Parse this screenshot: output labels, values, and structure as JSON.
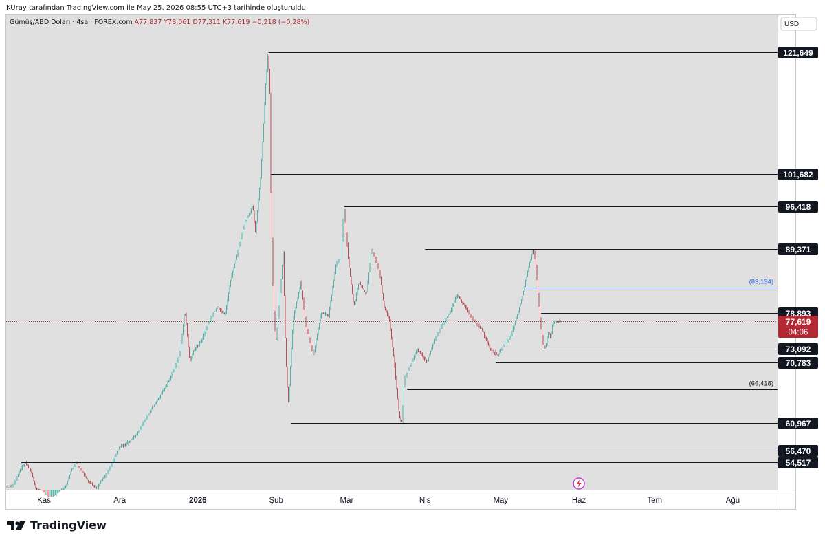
{
  "header": {
    "attribution": "KUray tarafından TradingView.com ile May 25, 2026 08:55 UTC+3 tarihinde oluşturuldu"
  },
  "legend": {
    "symbol": "Gümüş/ABD Doları · 4sa · FOREX.com",
    "ohlc": "A77,837 Y78,061 D77,311 K77,619 −0,218 (−0,28%)"
  },
  "currency_button": "USD",
  "brand": "TradingView",
  "colors": {
    "background": "#e0e0e0",
    "up": "#26a69a",
    "down": "#b22833",
    "level": "#131722",
    "blue_level": "#2962ff",
    "price_tag": "#b22833"
  },
  "chart_data": {
    "type": "candlestick",
    "x_axis_labels": [
      "Kas",
      "Ara",
      "2026",
      "Şub",
      "Mar",
      "Nis",
      "May",
      "Haz",
      "Tem",
      "Ağu"
    ],
    "y_ticks": [
      "52,000",
      "56,000",
      "60,000",
      "64,000",
      "68,000",
      "72,000",
      "76,000",
      "80,000",
      "84,000",
      "88,000",
      "92,000",
      "96,000",
      "100,000",
      "104,000",
      "108,000",
      "112,000",
      "116,000",
      "120,000"
    ],
    "y_range": [
      50000,
      122000
    ],
    "path": [
      {
        "t": "2025-10-20",
        "v": 50.5
      },
      {
        "t": "2025-10-23",
        "v": 53.5
      },
      {
        "t": "2025-10-25",
        "v": 54.5
      },
      {
        "t": "2025-10-27",
        "v": 53.0
      },
      {
        "t": "2025-10-29",
        "v": 50.2
      },
      {
        "t": "2025-11-03",
        "v": 48.5
      },
      {
        "t": "2025-11-06",
        "v": 49.0
      },
      {
        "t": "2025-11-10",
        "v": 50.6
      },
      {
        "t": "2025-11-12",
        "v": 53.2
      },
      {
        "t": "2025-11-14",
        "v": 54.4
      },
      {
        "t": "2025-11-17",
        "v": 52.5
      },
      {
        "t": "2025-11-19",
        "v": 51.2
      },
      {
        "t": "2025-11-22",
        "v": 50.3
      },
      {
        "t": "2025-11-25",
        "v": 52.0
      },
      {
        "t": "2025-11-28",
        "v": 54.0
      },
      {
        "t": "2025-12-01",
        "v": 57.0
      },
      {
        "t": "2025-12-04",
        "v": 57.5
      },
      {
        "t": "2025-12-08",
        "v": 59.0
      },
      {
        "t": "2025-12-12",
        "v": 62.0
      },
      {
        "t": "2025-12-15",
        "v": 64.0
      },
      {
        "t": "2025-12-19",
        "v": 66.5
      },
      {
        "t": "2025-12-22",
        "v": 69.0
      },
      {
        "t": "2025-12-25",
        "v": 72.0
      },
      {
        "t": "2025-12-27",
        "v": 79.5
      },
      {
        "t": "2025-12-29",
        "v": 71.0
      },
      {
        "t": "2025-12-31",
        "v": 73.0
      },
      {
        "t": "2026-01-03",
        "v": 74.5
      },
      {
        "t": "2026-01-06",
        "v": 78.0
      },
      {
        "t": "2026-01-09",
        "v": 80.0
      },
      {
        "t": "2026-01-12",
        "v": 78.5
      },
      {
        "t": "2026-01-14",
        "v": 84.0
      },
      {
        "t": "2026-01-17",
        "v": 89.0
      },
      {
        "t": "2026-01-20",
        "v": 94.0
      },
      {
        "t": "2026-01-23",
        "v": 96.5
      },
      {
        "t": "2026-01-24",
        "v": 92.0
      },
      {
        "t": "2026-01-26",
        "v": 101.0
      },
      {
        "t": "2026-01-27",
        "v": 108.0
      },
      {
        "t": "2026-01-28",
        "v": 116.0
      },
      {
        "t": "2026-01-29",
        "v": 121.6
      },
      {
        "t": "2026-01-30",
        "v": 112.0
      },
      {
        "t": "2026-01-30",
        "v": 101.0
      },
      {
        "t": "2026-01-31",
        "v": 82.0
      },
      {
        "t": "2026-02-01",
        "v": 74.0
      },
      {
        "t": "2026-02-02",
        "v": 78.0
      },
      {
        "t": "2026-02-04",
        "v": 89.0
      },
      {
        "t": "2026-02-05",
        "v": 72.0
      },
      {
        "t": "2026-02-06",
        "v": 64.0
      },
      {
        "t": "2026-02-08",
        "v": 78.0
      },
      {
        "t": "2026-02-11",
        "v": 84.0
      },
      {
        "t": "2026-02-13",
        "v": 77.0
      },
      {
        "t": "2026-02-16",
        "v": 72.0
      },
      {
        "t": "2026-02-19",
        "v": 79.0
      },
      {
        "t": "2026-02-22",
        "v": 78.5
      },
      {
        "t": "2026-02-25",
        "v": 87.0
      },
      {
        "t": "2026-02-27",
        "v": 88.0
      },
      {
        "t": "2026-02-28",
        "v": 96.4
      },
      {
        "t": "2026-03-02",
        "v": 87.0
      },
      {
        "t": "2026-03-04",
        "v": 80.0
      },
      {
        "t": "2026-03-06",
        "v": 84.0
      },
      {
        "t": "2026-03-09",
        "v": 82.0
      },
      {
        "t": "2026-03-11",
        "v": 89.5
      },
      {
        "t": "2026-03-14",
        "v": 86.0
      },
      {
        "t": "2026-03-16",
        "v": 80.0
      },
      {
        "t": "2026-03-18",
        "v": 78.0
      },
      {
        "t": "2026-03-20",
        "v": 71.0
      },
      {
        "t": "2026-03-22",
        "v": 62.0
      },
      {
        "t": "2026-03-23",
        "v": 61.0
      },
      {
        "t": "2026-03-24",
        "v": 68.0
      },
      {
        "t": "2026-03-26",
        "v": 70.0
      },
      {
        "t": "2026-03-29",
        "v": 73.0
      },
      {
        "t": "2026-04-02",
        "v": 71.0
      },
      {
        "t": "2026-04-05",
        "v": 74.5
      },
      {
        "t": "2026-04-08",
        "v": 77.0
      },
      {
        "t": "2026-04-11",
        "v": 79.0
      },
      {
        "t": "2026-04-14",
        "v": 82.0
      },
      {
        "t": "2026-04-17",
        "v": 80.0
      },
      {
        "t": "2026-04-20",
        "v": 78.0
      },
      {
        "t": "2026-04-24",
        "v": 76.0
      },
      {
        "t": "2026-04-27",
        "v": 73.0
      },
      {
        "t": "2026-04-30",
        "v": 72.0
      },
      {
        "t": "2026-05-02",
        "v": 73.5
      },
      {
        "t": "2026-05-05",
        "v": 75.0
      },
      {
        "t": "2026-05-08",
        "v": 79.0
      },
      {
        "t": "2026-05-10",
        "v": 82.0
      },
      {
        "t": "2026-05-12",
        "v": 86.0
      },
      {
        "t": "2026-05-14",
        "v": 89.3
      },
      {
        "t": "2026-05-15",
        "v": 87.5
      },
      {
        "t": "2026-05-16",
        "v": 82.0
      },
      {
        "t": "2026-05-17",
        "v": 77.0
      },
      {
        "t": "2026-05-18",
        "v": 74.0
      },
      {
        "t": "2026-05-19",
        "v": 73.2
      },
      {
        "t": "2026-05-20",
        "v": 76.0
      },
      {
        "t": "2026-05-21",
        "v": 75.0
      },
      {
        "t": "2026-05-22",
        "v": 77.5
      },
      {
        "t": "2026-05-25",
        "v": 77.6
      }
    ],
    "levels": [
      {
        "price": 121649,
        "label": "121,649",
        "from": "2026-01-29",
        "style": "tag-dark"
      },
      {
        "price": 101682,
        "label": "101,682",
        "from": "2026-01-30",
        "style": "tag-dark"
      },
      {
        "price": 96418,
        "label": "96,418",
        "from": "2026-02-28",
        "style": "tag-dark"
      },
      {
        "price": 89371,
        "label": "89,371",
        "from": "2026-04-01",
        "style": "tag-dark"
      },
      {
        "price": 83134,
        "label": "(83,134)",
        "from": "2026-05-11",
        "style": "blue-note"
      },
      {
        "price": 78893,
        "label": "78,893",
        "from": "2026-05-17",
        "style": "tag-dark"
      },
      {
        "price": 73092,
        "label": "73,092",
        "from": "2026-05-18",
        "style": "tag-dark"
      },
      {
        "price": 70783,
        "label": "70,783",
        "from": "2026-04-29",
        "style": "tag-dark"
      },
      {
        "price": 66418,
        "label": "(66,418)",
        "from": "2026-03-25",
        "style": "note"
      },
      {
        "price": 60967,
        "label": "60,967",
        "from": "2026-02-07",
        "style": "tag-dark"
      },
      {
        "price": 56470,
        "label": "56,470",
        "from": "2025-11-28",
        "style": "tag-dark"
      },
      {
        "price": 54517,
        "label": "54,517",
        "from": "2025-10-23",
        "style": "tag-dark"
      }
    ],
    "last_price": {
      "price": 77619,
      "label": "77,619",
      "countdown": "04:06"
    }
  }
}
